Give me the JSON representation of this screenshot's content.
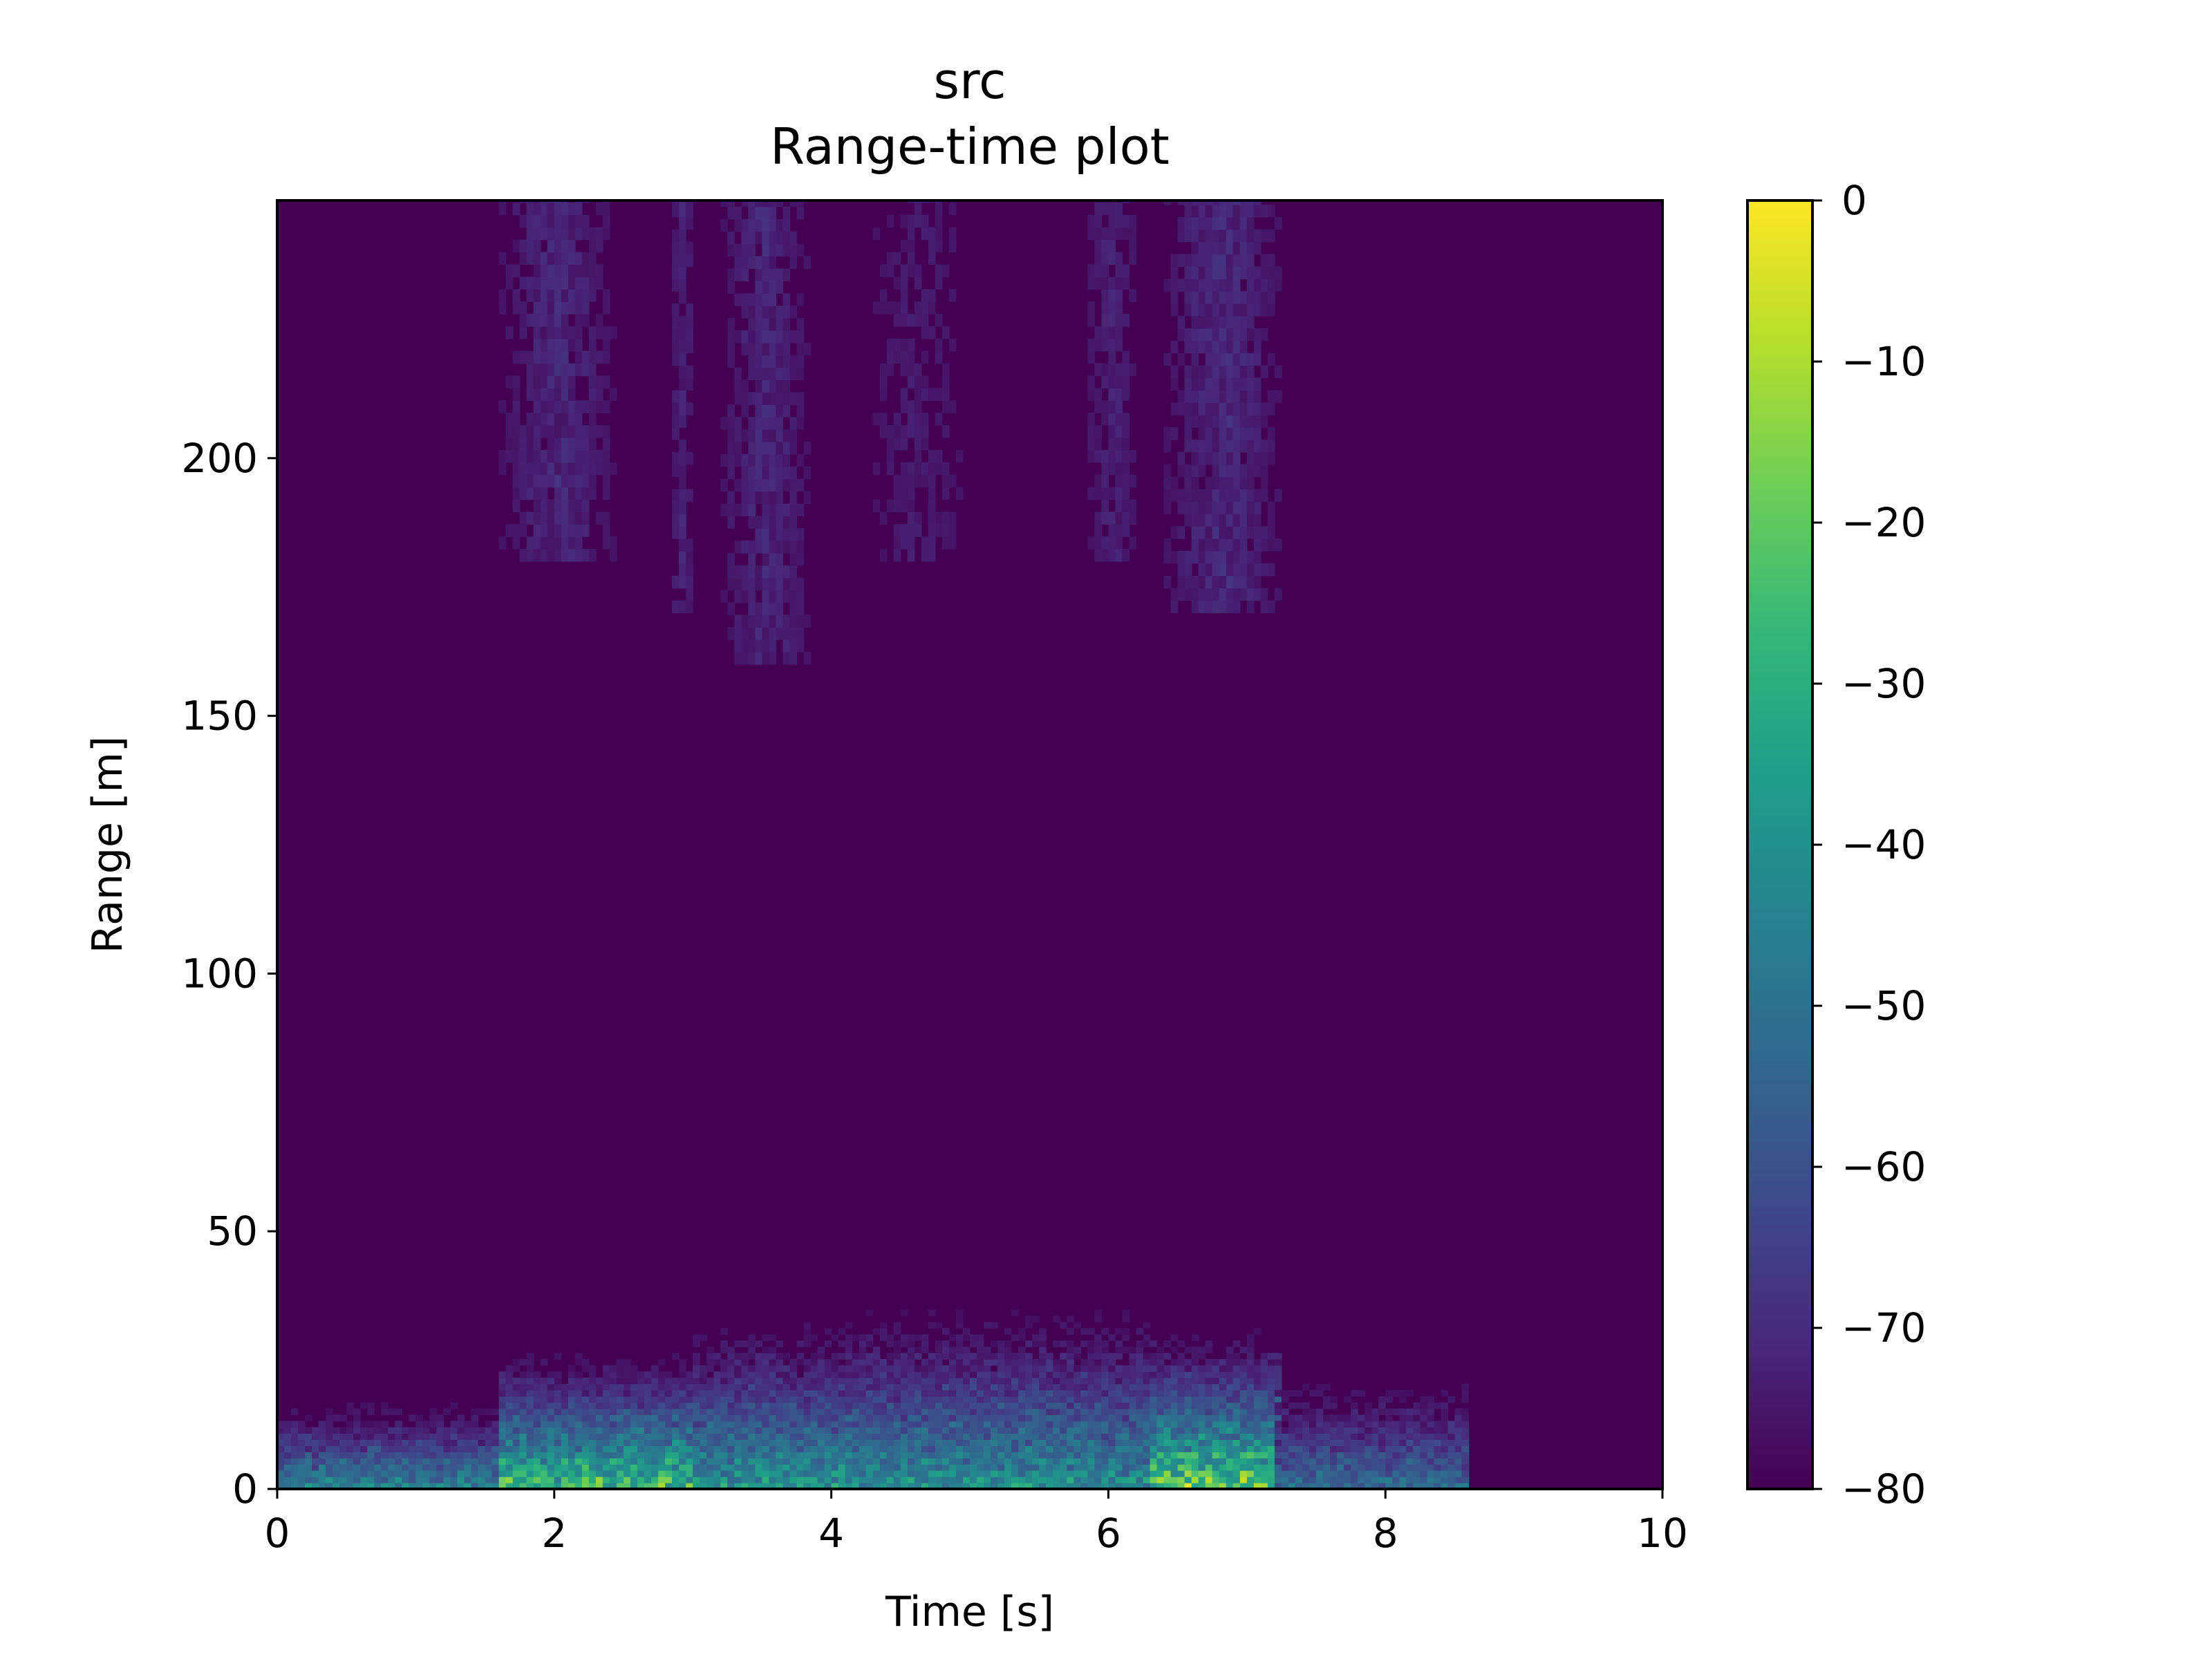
{
  "chart_data": {
    "type": "heatmap",
    "title": "src",
    "subtitle": "Range-time plot",
    "xlabel": "Time [s]",
    "ylabel": "Range [m]",
    "xlim": [
      0,
      10
    ],
    "ylim": [
      0,
      250
    ],
    "x_ticks": [
      0,
      2,
      4,
      6,
      8,
      10
    ],
    "y_ticks": [
      0,
      50,
      100,
      150,
      200
    ],
    "x_tick_labels": [
      "0",
      "2",
      "4",
      "6",
      "8",
      "10"
    ],
    "y_tick_labels": [
      "0",
      "50",
      "100",
      "150",
      "200"
    ],
    "colorbar": {
      "range": [
        -80,
        0
      ],
      "ticks": [
        0,
        -10,
        -20,
        -30,
        -40,
        -50,
        -60,
        -70,
        -80
      ],
      "tick_labels": [
        "0",
        "−10",
        "−20",
        "−30",
        "−40",
        "−50",
        "−60",
        "−70",
        "−80"
      ],
      "colormap": "viridis"
    },
    "colormap_colors": [
      "#440154",
      "#482878",
      "#3e4a89",
      "#31688e",
      "#26828e",
      "#1f9e89",
      "#35b779",
      "#6ece58",
      "#b5de2b",
      "#fde725"
    ],
    "background_value": -80,
    "grid": false,
    "legend": "none",
    "regions": [
      {
        "t_start": 0.0,
        "t_end": 1.6,
        "range_max": 16,
        "peak_db": -35
      },
      {
        "t_start": 1.6,
        "t_end": 3.0,
        "range_max": 26,
        "peak_db": -10
      },
      {
        "t_start": 3.0,
        "t_end": 4.2,
        "range_max": 32,
        "peak_db": -28
      },
      {
        "t_start": 4.2,
        "t_end": 6.3,
        "range_max": 34,
        "peak_db": -30
      },
      {
        "t_start": 6.3,
        "t_end": 7.2,
        "range_max": 30,
        "peak_db": -5
      },
      {
        "t_start": 7.2,
        "t_end": 8.6,
        "range_max": 20,
        "peak_db": -45
      },
      {
        "t_start": 8.6,
        "t_end": 10.0,
        "range_max": 0,
        "peak_db": -80
      }
    ],
    "faint_streaks": [
      {
        "t_start": 1.6,
        "t_end": 2.4,
        "range_min": 180,
        "range_max": 250,
        "peak_db": -68
      },
      {
        "t_start": 2.8,
        "t_end": 3.0,
        "range_min": 170,
        "range_max": 250,
        "peak_db": -70
      },
      {
        "t_start": 3.2,
        "t_end": 3.8,
        "range_min": 160,
        "range_max": 250,
        "peak_db": -68
      },
      {
        "t_start": 4.2,
        "t_end": 5.0,
        "range_min": 180,
        "range_max": 250,
        "peak_db": -72
      },
      {
        "t_start": 5.8,
        "t_end": 6.2,
        "range_min": 180,
        "range_max": 250,
        "peak_db": -70
      },
      {
        "t_start": 6.4,
        "t_end": 7.2,
        "range_min": 170,
        "range_max": 250,
        "peak_db": -67
      }
    ]
  }
}
